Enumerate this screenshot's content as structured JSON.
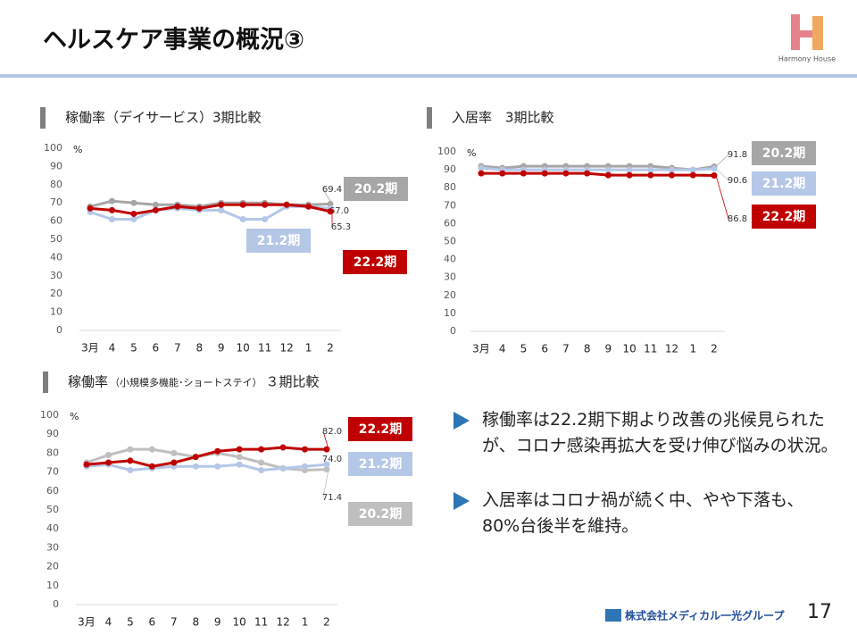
{
  "header": {
    "title": "ヘルスケア事業の概況③",
    "logo": "Harmony House"
  },
  "chart_data": [
    {
      "type": "line",
      "title": "稼働率（デイサービス）3期比較",
      "y_unit": "%",
      "categories": [
        "3月",
        "4",
        "5",
        "6",
        "7",
        "8",
        "9",
        "10",
        "11",
        "12",
        "1",
        "2"
      ],
      "ylim": [
        0,
        100
      ],
      "yticks": [
        0,
        10,
        20,
        30,
        40,
        50,
        60,
        70,
        80,
        90,
        100
      ],
      "series": [
        {
          "name": "20.2期",
          "color": "#a6a6a6",
          "values": [
            68,
            71,
            70,
            69,
            69,
            68,
            70,
            70,
            70,
            69,
            69,
            69.4
          ],
          "value_labels": [
            null,
            null,
            null,
            null,
            null,
            null,
            null,
            null,
            null,
            null,
            null,
            "69.4"
          ]
        },
        {
          "name": "21.2期",
          "color": "#b4c7e7",
          "values": [
            65,
            61,
            61,
            66,
            67,
            66,
            66,
            61,
            61,
            68,
            68,
            67
          ],
          "value_labels": [
            null,
            null,
            null,
            null,
            null,
            null,
            null,
            null,
            null,
            null,
            null,
            "67.0"
          ]
        },
        {
          "name": "22.2期",
          "color": "#c00000",
          "values": [
            67,
            66,
            64,
            66,
            68,
            67,
            69,
            69,
            69,
            69,
            68,
            65.3
          ],
          "value_labels": [
            null,
            null,
            null,
            null,
            null,
            null,
            null,
            null,
            null,
            null,
            null,
            "65.3"
          ]
        }
      ]
    },
    {
      "type": "line",
      "title": "入居率　3期比較",
      "y_unit": "%",
      "categories": [
        "3月",
        "4",
        "5",
        "6",
        "7",
        "8",
        "9",
        "10",
        "11",
        "12",
        "1",
        "2"
      ],
      "ylim": [
        0,
        100
      ],
      "yticks": [
        0,
        10,
        20,
        30,
        40,
        50,
        60,
        70,
        80,
        90,
        100
      ],
      "series": [
        {
          "name": "20.2期",
          "color": "#a6a6a6",
          "values": [
            92,
            91,
            92,
            92,
            92,
            92,
            92,
            92,
            92,
            91,
            90,
            91.8
          ],
          "value_labels": [
            null,
            null,
            null,
            null,
            null,
            null,
            null,
            null,
            null,
            null,
            null,
            "91.8"
          ]
        },
        {
          "name": "21.2期",
          "color": "#b4c7e7",
          "values": [
            91,
            90,
            90,
            90,
            90,
            90,
            90,
            90,
            90,
            90,
            90,
            90.6
          ],
          "value_labels": [
            null,
            null,
            null,
            null,
            null,
            null,
            null,
            null,
            null,
            null,
            null,
            "90.6"
          ]
        },
        {
          "name": "22.2期",
          "color": "#c00000",
          "values": [
            88,
            88,
            88,
            88,
            88,
            88,
            87,
            87,
            87,
            87,
            87,
            86.8
          ],
          "value_labels": [
            null,
            null,
            null,
            null,
            null,
            null,
            null,
            null,
            null,
            null,
            null,
            "86.8"
          ]
        }
      ]
    },
    {
      "type": "line",
      "title": "稼働率",
      "subtitle": "（小規模多機能･ショートステイ）",
      "title_suffix": "３期比較",
      "y_unit": "%",
      "categories": [
        "3月",
        "4",
        "5",
        "6",
        "7",
        "8",
        "9",
        "10",
        "11",
        "12",
        "1",
        "2"
      ],
      "ylim": [
        0,
        100
      ],
      "yticks": [
        0,
        10,
        20,
        30,
        40,
        50,
        60,
        70,
        80,
        90,
        100
      ],
      "series": [
        {
          "name": "20.2期",
          "color": "#bfbfbf",
          "values": [
            75,
            79,
            82,
            82,
            80,
            78,
            80,
            78,
            75,
            72,
            71,
            71.4
          ],
          "value_labels": [
            null,
            null,
            null,
            null,
            null,
            null,
            null,
            null,
            null,
            null,
            null,
            "71.4"
          ]
        },
        {
          "name": "21.2期",
          "color": "#b4c7e7",
          "values": [
            73,
            74,
            71,
            72,
            73,
            73,
            73,
            74,
            71,
            72,
            73,
            74
          ],
          "value_labels": [
            null,
            null,
            null,
            null,
            null,
            null,
            null,
            null,
            null,
            null,
            null,
            "74.0"
          ]
        },
        {
          "name": "22.2期",
          "color": "#c00000",
          "values": [
            74,
            75,
            76,
            73,
            75,
            78,
            81,
            82,
            82,
            83,
            82,
            82
          ],
          "value_labels": [
            null,
            null,
            null,
            null,
            null,
            null,
            null,
            null,
            null,
            null,
            null,
            "82.0"
          ]
        }
      ]
    }
  ],
  "bullets": [
    "稼働率は22.2期下期より改善の兆候見られたが、コロナ感染再拡大を受け伸び悩みの状況。",
    "入居率はコロナ禍が続く中、やや下落も、80%台後半を維持。"
  ],
  "footer": {
    "company": "株式会社メディカル一光グループ",
    "page": "17"
  }
}
